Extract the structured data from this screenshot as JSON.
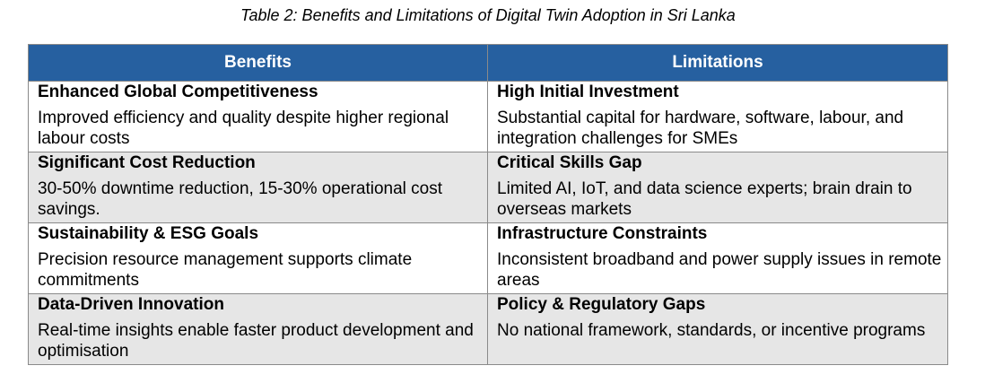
{
  "caption": "Table 2: Benefits and Limitations of Digital Twin Adoption in Sri Lanka",
  "table": {
    "headers": [
      "Benefits",
      "Limitations"
    ],
    "rows": [
      {
        "benefit": {
          "title": "Enhanced Global Competitiveness",
          "desc": "Improved efficiency and quality despite higher regional labour costs"
        },
        "limitation": {
          "title": "High Initial Investment",
          "desc": "Substantial capital for hardware, software, labour, and integration challenges for SMEs"
        }
      },
      {
        "benefit": {
          "title": "Significant Cost Reduction",
          "desc": "30-50% downtime reduction, 15-30% operational cost savings."
        },
        "limitation": {
          "title": "Critical Skills Gap",
          "desc": "Limited AI, IoT, and data science experts; brain drain to overseas markets"
        }
      },
      {
        "benefit": {
          "title": "Sustainability & ESG Goals",
          "desc": "Precision resource management supports climate commitments"
        },
        "limitation": {
          "title": "Infrastructure Constraints",
          "desc": "Inconsistent broadband and power supply issues in remote areas"
        }
      },
      {
        "benefit": {
          "title": "Data-Driven Innovation",
          "desc": "Real-time insights enable faster product development and optimisation"
        },
        "limitation": {
          "title": "Policy & Regulatory Gaps",
          "desc": "No national framework, standards, or incentive programs"
        }
      }
    ]
  },
  "colors": {
    "header_bg": "#2660a0",
    "header_text": "#ffffff",
    "shaded_row_bg": "#e6e6e6",
    "border": "#8a8a8a"
  }
}
